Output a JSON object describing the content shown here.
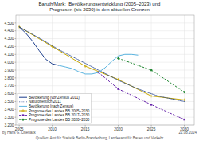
{
  "chart_data": {
    "type": "line",
    "title": "Baruth/Mark:  Bevölkerungsentwicklung (2005–2023) und\nPrognosen (bis 2030) in den aktuellen Grenzen",
    "xlim": [
      2004.5,
      2031.5
    ],
    "xticks": [
      2005,
      2010,
      2015,
      2020,
      2025,
      2030
    ],
    "ylim": [
      3200,
      4600
    ],
    "yticks": [
      {
        "value": 3200,
        "label": "3.200"
      },
      {
        "value": 3300,
        "label": "3.300"
      },
      {
        "value": 3400,
        "label": "3.400"
      },
      {
        "value": 3500,
        "label": "3.500"
      },
      {
        "value": 3600,
        "label": "3.600"
      },
      {
        "value": 3700,
        "label": "3.700"
      },
      {
        "value": 3800,
        "label": "3.800"
      },
      {
        "value": 3900,
        "label": "3.900"
      },
      {
        "value": 4000,
        "label": "4.000"
      },
      {
        "value": 4100,
        "label": "4.100"
      },
      {
        "value": 4200,
        "label": "4.200"
      },
      {
        "value": 4300,
        "label": "4.300"
      },
      {
        "value": 4400,
        "label": "4.400"
      },
      {
        "value": 4500,
        "label": "4.500"
      }
    ],
    "grid": true,
    "legend": "lower left",
    "series": [
      {
        "name": "Bevölkerung (vor Zensus 2011)",
        "color": "#1a3c8c",
        "line_style": "solid",
        "x": [
          2005,
          2006,
          2007,
          2008,
          2009,
          2010,
          2011
        ],
        "values": [
          4450,
          4370,
          4270,
          4150,
          4040,
          3980,
          3960
        ]
      },
      {
        "name": "Naturoffentlich 2011",
        "color": "#1a3c8c",
        "line_style": "dotted",
        "x": [
          2005,
          2008,
          2011,
          2014,
          2017,
          2020,
          2023,
          2026,
          2030
        ],
        "values": [
          4450,
          4310,
          4160,
          4030,
          3900,
          3770,
          3660,
          3570,
          3500
        ]
      },
      {
        "name": "Bevölkerung (nach Zensus)",
        "color": "#5ab4e0",
        "line_style": "solid",
        "x": [
          2011,
          2012,
          2013,
          2014,
          2015,
          2016,
          2017,
          2018,
          2019,
          2020,
          2021,
          2022,
          2023
        ],
        "values": [
          3960,
          3940,
          3920,
          3880,
          3850,
          3850,
          3870,
          3930,
          4010,
          4080,
          4100,
          4100,
          4090
        ]
      },
      {
        "name": "Prognose des Landes BB 2005–2030",
        "color": "#c8a800",
        "line_style": "solid",
        "marker": "plus",
        "x": [
          2005,
          2010,
          2015,
          2020,
          2025,
          2030
        ],
        "values": [
          4450,
          4200,
          3950,
          3780,
          3570,
          3520
        ]
      },
      {
        "name": "Prognose des Landes BB 2017–2030",
        "color": "#6622aa",
        "line_style": "dashed",
        "marker": "square",
        "x": [
          2017,
          2020,
          2025,
          2030
        ],
        "values": [
          3870,
          3660,
          3460,
          3270
        ]
      },
      {
        "name": "Prognose des Landes BB 2020–2030",
        "color": "#228833",
        "line_style": "dashed",
        "marker": "diamond",
        "x": [
          2020,
          2025,
          2030
        ],
        "values": [
          4050,
          3900,
          3620
        ]
      }
    ],
    "annotations": [
      "by Hans G. Oberlack",
      "Quellen: Amt für Statistik Berlin-Brandenburg, Landesamt für Bauen und Verkehr",
      "22.08.2024"
    ]
  }
}
